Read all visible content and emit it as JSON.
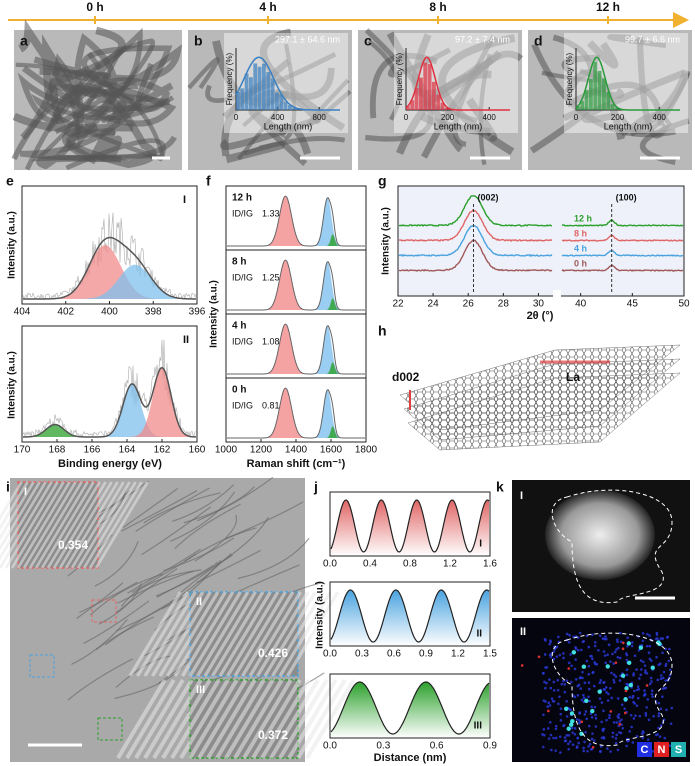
{
  "timeline": [
    "0 h",
    "4 h",
    "8 h",
    "12 h"
  ],
  "tem": [
    {
      "letter": "a"
    },
    {
      "letter": "b",
      "mean": "297.1 ± 64.6 nm",
      "ylabel": "Frequency (%)",
      "xlabel": "Length (nm)",
      "xlim": [
        0,
        1000
      ],
      "xticks": [
        0,
        400,
        800
      ],
      "color": "#3a7fc1"
    },
    {
      "letter": "c",
      "mean": "97.2 ± 7.4 nm",
      "ylabel": "Frequency (%)",
      "xlabel": "Length (nm)",
      "xlim": [
        0,
        500
      ],
      "xticks": [
        0,
        200,
        400
      ],
      "color": "#e03040"
    },
    {
      "letter": "d",
      "mean": "99.7 ± 6.6 nm",
      "ylabel": "Frequency (%)",
      "xlabel": "Length (nm)",
      "xlim": [
        0,
        500
      ],
      "xticks": [
        0,
        200,
        400
      ],
      "color": "#2a9a3a"
    }
  ],
  "e": {
    "letter": "e",
    "ylabel": "Intensity (a.u.)",
    "xlabel": "Binding energy (eV)",
    "top": {
      "label": "I",
      "xlim": [
        404,
        396
      ],
      "xticks": [
        404,
        402,
        400,
        398,
        396
      ]
    },
    "bottom": {
      "label": "II",
      "xlim": [
        170,
        160
      ],
      "xticks": [
        170,
        168,
        166,
        164,
        162,
        160
      ]
    }
  },
  "f": {
    "letter": "f",
    "ylabel": "Intensity (a.u.)",
    "xlabel": "Raman shift (cm⁻¹)",
    "xlim": [
      1000,
      1800
    ],
    "xticks": [
      1000,
      1200,
      1400,
      1600,
      1800
    ],
    "samples": [
      {
        "time": "12 h",
        "ratio_label": "ID/IG",
        "ratio": 1.33
      },
      {
        "time": "8 h",
        "ratio_label": "ID/IG",
        "ratio": 1.25
      },
      {
        "time": "4 h",
        "ratio_label": "ID/IG",
        "ratio": 1.08
      },
      {
        "time": "0 h",
        "ratio_label": "ID/IG",
        "ratio": 0.81
      }
    ]
  },
  "g": {
    "letter": "g",
    "ylabel": "Intensity (a.u.)",
    "xlabel": "2θ (°)",
    "xlim": [
      22,
      31
    ],
    "xticks": [
      22,
      24,
      26,
      28,
      30
    ],
    "xlim2": [
      38,
      50
    ],
    "xticks2": [
      40,
      45,
      50
    ],
    "peaks": [
      "(002)",
      "(100)"
    ],
    "series": [
      {
        "name": "12 h",
        "color": "#2ca02c"
      },
      {
        "name": "8 h",
        "color": "#e06666"
      },
      {
        "name": "4 h",
        "color": "#4aa3df"
      },
      {
        "name": "0 h",
        "color": "#a05a5a"
      }
    ]
  },
  "h": {
    "letter": "h",
    "d_label": "d002",
    "la_label": "La"
  },
  "i": {
    "letter": "i",
    "insets": [
      {
        "label": "I",
        "spacing": 0.354
      },
      {
        "label": "II",
        "spacing": 0.426
      },
      {
        "label": "III",
        "spacing": 0.372
      }
    ]
  },
  "j": {
    "letter": "j",
    "ylabel": "Intensity (a.u.)",
    "xlabel": "Distance (nm)",
    "plots": [
      {
        "label": "I",
        "color": "#e06666",
        "xlim": [
          0,
          1.6
        ],
        "xticks": [
          {
            "value": 0,
            "label": "0.0"
          },
          0.4,
          0.8,
          1.2,
          1.6
        ]
      },
      {
        "label": "II",
        "color": "#4aa3df",
        "xlim": [
          0,
          1.5
        ],
        "xticks": [
          {
            "value": 0,
            "label": "0.0"
          },
          0.3,
          0.6,
          0.9,
          1.2,
          1.5
        ]
      },
      {
        "label": "III",
        "color": "#2ca02c",
        "xlim": [
          0,
          0.9
        ],
        "xticks": [
          {
            "value": 0,
            "label": "0.0"
          },
          0.3,
          0.6,
          0.9
        ]
      }
    ]
  },
  "k": {
    "letter": "k",
    "panels": [
      "I",
      "II"
    ],
    "elements": [
      "C",
      "N",
      "S"
    ]
  }
}
